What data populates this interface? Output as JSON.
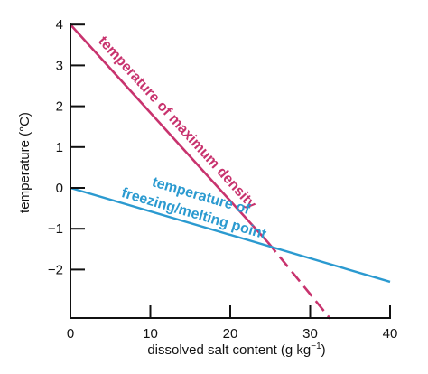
{
  "chart_data": {
    "type": "line",
    "title": "",
    "xlabel": "dissolved salt content (g kg",
    "xlabel_sup": "−1",
    "xlabel_close": ")",
    "ylabel": "temperature (°C)",
    "xlim": [
      0,
      40
    ],
    "ylim": [
      -3.2,
      4
    ],
    "grid": false,
    "legend": "none",
    "x_ticks": [
      0,
      10,
      20,
      30,
      40
    ],
    "x_tick_labels": [
      "0",
      "10",
      "20",
      "30",
      "40"
    ],
    "y_ticks": [
      4,
      3,
      2,
      1,
      0,
      -1,
      -2
    ],
    "y_tick_labels": [
      "4",
      "3",
      "2",
      "1",
      "0",
      "−1",
      "−2"
    ],
    "series": [
      {
        "name": "temperature of maximum density",
        "label_lines": [
          "temperature of maximum density"
        ],
        "color": "#c8336e",
        "x": [
          0,
          24.7
        ],
        "y": [
          4,
          -1.33
        ],
        "dashed_continuation": {
          "x": [
            24.7,
            32.5
          ],
          "y": [
            -1.33,
            -3.2
          ]
        }
      },
      {
        "name": "temperature of freezing/melting point",
        "label_lines": [
          "temperature of",
          "freezing/melting point"
        ],
        "color": "#2b9ad0",
        "x": [
          0,
          40
        ],
        "y": [
          0,
          -2.3
        ]
      }
    ]
  }
}
